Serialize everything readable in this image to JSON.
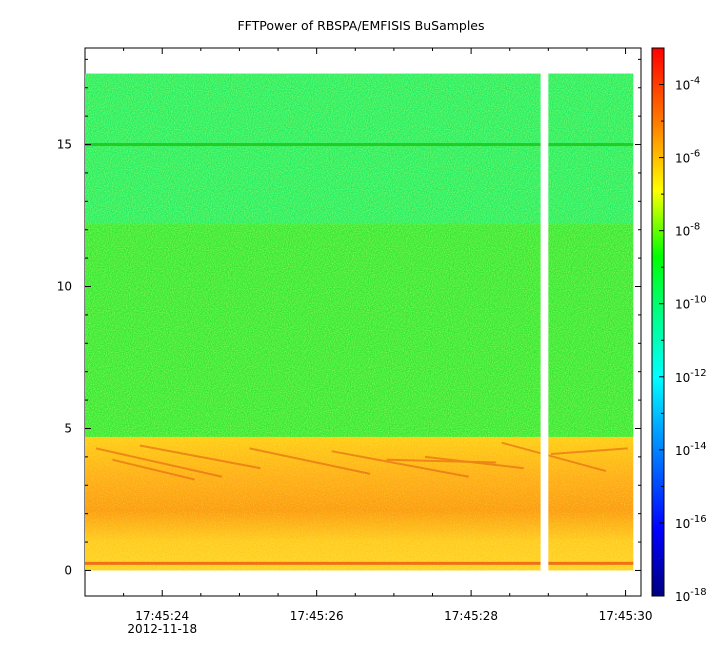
{
  "chart_data": {
    "type": "heatmap",
    "title": "FFTPower of RBSPA/EMFISIS  BuSamples",
    "xlabel": "",
    "ylabel": "",
    "x_start": "17:45:23.0",
    "x_end": "17:45:30.2",
    "x_data_start": "17:45:23.0",
    "x_data_end": "17:45:30.1",
    "x_ticks": [
      "17:45:24",
      "17:45:26",
      "17:45:28",
      "17:45:30"
    ],
    "x_tick_date": "2012-11-18",
    "data_gap": [
      "17:45:28.9",
      "17:45:29.0"
    ],
    "ylim": [
      -0.9,
      18.4
    ],
    "y_ticks": [
      0,
      5,
      10,
      15
    ],
    "frequency_range": [
      0,
      17.5
    ],
    "colorbar": {
      "scale": "log",
      "range": [
        1e-18,
        0.001
      ],
      "tick_labels": [
        "10-4",
        "10-6",
        "10-8",
        "10-10",
        "10-12",
        "10-14",
        "10-16",
        "10-18"
      ],
      "colormap": [
        "#00007f",
        "#0000ff",
        "#00ffff",
        "#00ff7f",
        "#00ff00",
        "#ffff00",
        "#ff7f00",
        "#ff0000"
      ]
    },
    "bands": [
      {
        "y_range": [
          12.2,
          17.5
        ],
        "log_power": -12.5,
        "color": "#22ee66"
      },
      {
        "y_range": [
          4.7,
          12.2
        ],
        "log_power": -10.3,
        "color": "#33e833"
      },
      {
        "y_range": [
          0,
          4.7
        ],
        "log_power": -7,
        "color": "#ffcc22"
      }
    ],
    "features": [
      {
        "name": "line",
        "y": 15.0,
        "log_power": -9.8
      },
      {
        "name": "line",
        "y": 0.25,
        "log_power": -6
      }
    ],
    "grid": false
  }
}
